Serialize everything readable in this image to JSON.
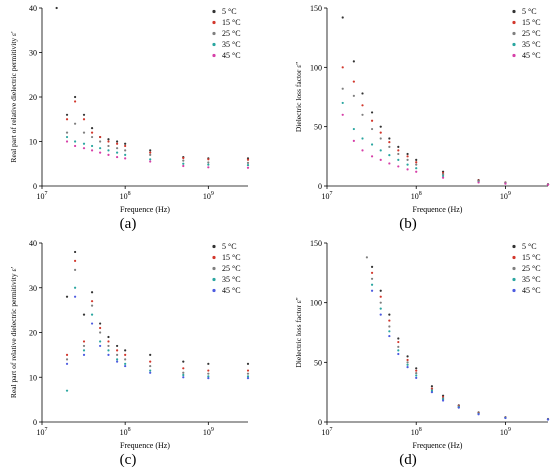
{
  "chart_data": [
    {
      "type": "scatter",
      "panel": "(a)",
      "xlabel": "Frequence (Hz)",
      "ylabel": "Real part of relative dielectric permitivity ε'",
      "xscale": "log",
      "xlim": [
        10000000,
        3000000000
      ],
      "ylim": [
        0,
        40
      ],
      "x_ticks": [
        {
          "v": 10000000,
          "base": "10",
          "exp": "7"
        },
        {
          "v": 100000000,
          "base": "10",
          "exp": "8"
        },
        {
          "v": 1000000000,
          "base": "10",
          "exp": "9"
        }
      ],
      "y_ticks": [
        0,
        10,
        20,
        30,
        40
      ],
      "legend_position": "top-right",
      "series": [
        {
          "name": "5 °C",
          "color": "#333333",
          "x": [
            15000000,
            20000000,
            25000000,
            32000000,
            40000000,
            50000000,
            63000000,
            80000000,
            100000000,
            200000000,
            500000000,
            1000000000,
            3000000000
          ],
          "y": [
            40,
            16,
            20,
            16,
            13,
            11,
            10.5,
            10,
            9.5,
            8,
            6.5,
            6.2,
            6.2
          ]
        },
        {
          "name": "15 °C",
          "color": "#d2372c",
          "x": [
            20000000,
            25000000,
            32000000,
            40000000,
            50000000,
            63000000,
            80000000,
            100000000,
            200000000,
            500000000,
            1000000000,
            3000000000
          ],
          "y": [
            15,
            19,
            15,
            12,
            11,
            10,
            9.5,
            9,
            7.5,
            6.3,
            6,
            5.9
          ]
        },
        {
          "name": "25 °C",
          "color": "#7f7f7f",
          "x": [
            20000000,
            25000000,
            32000000,
            40000000,
            50000000,
            63000000,
            80000000,
            100000000,
            200000000,
            500000000,
            1000000000,
            3000000000
          ],
          "y": [
            12,
            14,
            12,
            11,
            10,
            9,
            8.5,
            8,
            7,
            5.7,
            5.3,
            5.2
          ]
        },
        {
          "name": "35 °C",
          "color": "#2aa6a0",
          "x": [
            20000000,
            25000000,
            32000000,
            40000000,
            50000000,
            63000000,
            80000000,
            100000000,
            200000000,
            500000000,
            1000000000,
            3000000000
          ],
          "y": [
            11,
            10,
            9.5,
            9,
            8.5,
            8,
            7.5,
            7,
            6,
            5,
            4.8,
            4.7
          ]
        },
        {
          "name": "45 °C",
          "color": "#d63fa8",
          "x": [
            20000000,
            25000000,
            32000000,
            40000000,
            50000000,
            63000000,
            80000000,
            100000000,
            200000000,
            500000000,
            1000000000,
            3000000000
          ],
          "y": [
            10,
            9,
            8.5,
            8,
            7.5,
            7,
            6.5,
            6.2,
            5.5,
            4.5,
            4.2,
            4.1
          ]
        }
      ]
    },
    {
      "type": "scatter",
      "panel": "(b)",
      "xlabel": "Frequence (Hz)",
      "ylabel": "Dielectric loss factor ε''",
      "xscale": "log",
      "xlim": [
        10000000,
        3000000000
      ],
      "ylim": [
        0,
        150
      ],
      "x_ticks": [
        {
          "v": 10000000,
          "base": "10",
          "exp": "7"
        },
        {
          "v": 100000000,
          "base": "10",
          "exp": "8"
        },
        {
          "v": 1000000000,
          "base": "10",
          "exp": "9"
        }
      ],
      "y_ticks": [
        0,
        50,
        100,
        150
      ],
      "legend_position": "top-right",
      "series": [
        {
          "name": "5 °C",
          "color": "#333333",
          "x": [
            15000000,
            20000000,
            25000000,
            32000000,
            40000000,
            50000000,
            63000000,
            80000000,
            100000000,
            200000000,
            500000000,
            1000000000,
            3000000000
          ],
          "y": [
            142,
            105,
            78,
            62,
            50,
            40,
            33,
            27,
            22,
            12,
            5,
            3,
            1.5
          ]
        },
        {
          "name": "15 °C",
          "color": "#d2372c",
          "x": [
            15000000,
            20000000,
            25000000,
            32000000,
            40000000,
            50000000,
            63000000,
            80000000,
            100000000,
            200000000,
            500000000,
            1000000000,
            3000000000
          ],
          "y": [
            100,
            88,
            68,
            55,
            45,
            37,
            30,
            25,
            20,
            11,
            4.5,
            2.8,
            1.4
          ]
        },
        {
          "name": "25 °C",
          "color": "#7f7f7f",
          "x": [
            15000000,
            20000000,
            25000000,
            32000000,
            40000000,
            50000000,
            63000000,
            80000000,
            100000000,
            200000000,
            500000000,
            1000000000,
            3000000000
          ],
          "y": [
            82,
            76,
            60,
            48,
            40,
            33,
            27,
            22,
            18,
            10,
            4,
            2.5,
            1.3
          ]
        },
        {
          "name": "35 °C",
          "color": "#2aa6a0",
          "x": [
            15000000,
            20000000,
            25000000,
            32000000,
            40000000,
            50000000,
            63000000,
            80000000,
            100000000,
            200000000,
            500000000,
            1000000000,
            3000000000
          ],
          "y": [
            70,
            48,
            40,
            35,
            30,
            26,
            22,
            18,
            15,
            8.5,
            3.5,
            2.2,
            1.2
          ]
        },
        {
          "name": "45 °C",
          "color": "#d63fa8",
          "x": [
            15000000,
            20000000,
            25000000,
            32000000,
            40000000,
            50000000,
            63000000,
            80000000,
            100000000,
            200000000,
            500000000,
            1000000000,
            3000000000
          ],
          "y": [
            60,
            38,
            30,
            25,
            22,
            19,
            16.5,
            14,
            12,
            7,
            3,
            2,
            1.1
          ]
        }
      ]
    },
    {
      "type": "scatter",
      "panel": "(c)",
      "xlabel": "Frequence (Hz)",
      "ylabel": "Real part of relative dielectric permitivity ε'",
      "xscale": "log",
      "xlim": [
        10000000,
        3000000000
      ],
      "ylim": [
        0,
        40
      ],
      "x_ticks": [
        {
          "v": 10000000,
          "base": "10",
          "exp": "7"
        },
        {
          "v": 100000000,
          "base": "10",
          "exp": "8"
        },
        {
          "v": 1000000000,
          "base": "10",
          "exp": "9"
        }
      ],
      "y_ticks": [
        0,
        10,
        20,
        30,
        40
      ],
      "legend_position": "top-right",
      "series": [
        {
          "name": "5 °C",
          "color": "#333333",
          "x": [
            20000000,
            25000000,
            32000000,
            40000000,
            50000000,
            63000000,
            80000000,
            100000000,
            200000000,
            500000000,
            1000000000,
            3000000000
          ],
          "y": [
            28,
            38,
            24,
            29,
            22,
            19,
            17,
            16,
            15,
            13.5,
            13,
            13
          ]
        },
        {
          "name": "15 °C",
          "color": "#d2372c",
          "x": [
            20000000,
            25000000,
            32000000,
            40000000,
            50000000,
            63000000,
            80000000,
            100000000,
            200000000,
            500000000,
            1000000000,
            3000000000
          ],
          "y": [
            15,
            36,
            18,
            27,
            21,
            18,
            16,
            15,
            13.5,
            12,
            11.5,
            11.5
          ]
        },
        {
          "name": "25 °C",
          "color": "#7f7f7f",
          "x": [
            20000000,
            25000000,
            32000000,
            40000000,
            50000000,
            63000000,
            80000000,
            100000000,
            200000000,
            500000000,
            1000000000,
            3000000000
          ],
          "y": [
            14,
            34,
            17,
            26,
            20,
            17,
            15,
            14,
            12.5,
            11,
            10.8,
            10.8
          ]
        },
        {
          "name": "35 °C",
          "color": "#2aa6a0",
          "x": [
            20000000,
            25000000,
            32000000,
            40000000,
            50000000,
            63000000,
            80000000,
            100000000,
            200000000,
            500000000,
            1000000000,
            3000000000
          ],
          "y": [
            7,
            30,
            16,
            24,
            18,
            16,
            14,
            13,
            11.5,
            10.5,
            10.2,
            10.2
          ]
        },
        {
          "name": "45 °C",
          "color": "#4d5be0",
          "x": [
            20000000,
            25000000,
            32000000,
            40000000,
            50000000,
            63000000,
            80000000,
            100000000,
            200000000,
            500000000,
            1000000000,
            3000000000
          ],
          "y": [
            13,
            28,
            15,
            22,
            17,
            15,
            13.5,
            12.5,
            11,
            10,
            9.8,
            9.8
          ]
        }
      ]
    },
    {
      "type": "scatter",
      "panel": "(d)",
      "xlabel": "Frequence (Hz)",
      "ylabel": "Dielectric loss factor ε''",
      "xscale": "log",
      "xlim": [
        10000000,
        3000000000
      ],
      "ylim": [
        0,
        150
      ],
      "x_ticks": [
        {
          "v": 10000000,
          "base": "10",
          "exp": "7"
        },
        {
          "v": 100000000,
          "base": "10",
          "exp": "8"
        },
        {
          "v": 1000000000,
          "base": "10",
          "exp": "9"
        }
      ],
      "y_ticks": [
        0,
        50,
        100,
        150
      ],
      "legend_position": "top-right",
      "series": [
        {
          "name": "5 °C",
          "color": "#333333",
          "x": [
            32000000,
            40000000,
            50000000,
            63000000,
            80000000,
            100000000,
            150000000,
            200000000,
            300000000,
            500000000,
            1000000000,
            3000000000
          ],
          "y": [
            130,
            110,
            90,
            70,
            55,
            45,
            30,
            22,
            14,
            8,
            4,
            2.5
          ]
        },
        {
          "name": "15 °C",
          "color": "#d2372c",
          "x": [
            32000000,
            40000000,
            50000000,
            63000000,
            80000000,
            100000000,
            150000000,
            200000000,
            300000000,
            500000000,
            1000000000,
            3000000000
          ],
          "y": [
            125,
            105,
            85,
            67,
            52,
            43,
            28,
            21,
            13.5,
            7.5,
            3.8,
            2.4
          ]
        },
        {
          "name": "25 °C",
          "color": "#7f7f7f",
          "x": [
            28000000,
            32000000,
            40000000,
            50000000,
            63000000,
            80000000,
            100000000,
            150000000,
            200000000,
            300000000,
            500000000,
            1000000000,
            3000000000
          ],
          "y": [
            138,
            120,
            100,
            80,
            63,
            50,
            41,
            27,
            20,
            13,
            7,
            3.6,
            2.3
          ]
        },
        {
          "name": "35 °C",
          "color": "#2aa6a0",
          "x": [
            32000000,
            40000000,
            50000000,
            63000000,
            80000000,
            100000000,
            150000000,
            200000000,
            300000000,
            500000000,
            1000000000,
            3000000000
          ],
          "y": [
            115,
            95,
            76,
            60,
            48,
            39,
            26,
            19,
            12.5,
            6.8,
            3.5,
            2.2
          ]
        },
        {
          "name": "45 °C",
          "color": "#4d5be0",
          "x": [
            32000000,
            40000000,
            50000000,
            63000000,
            80000000,
            100000000,
            150000000,
            200000000,
            300000000,
            500000000,
            1000000000,
            3000000000
          ],
          "y": [
            110,
            90,
            72,
            57,
            46,
            37,
            25,
            18,
            12,
            6.5,
            3.3,
            2.1
          ]
        }
      ]
    }
  ],
  "panel_labels": [
    "(a)",
    "(b)",
    "(c)",
    "(d)"
  ]
}
